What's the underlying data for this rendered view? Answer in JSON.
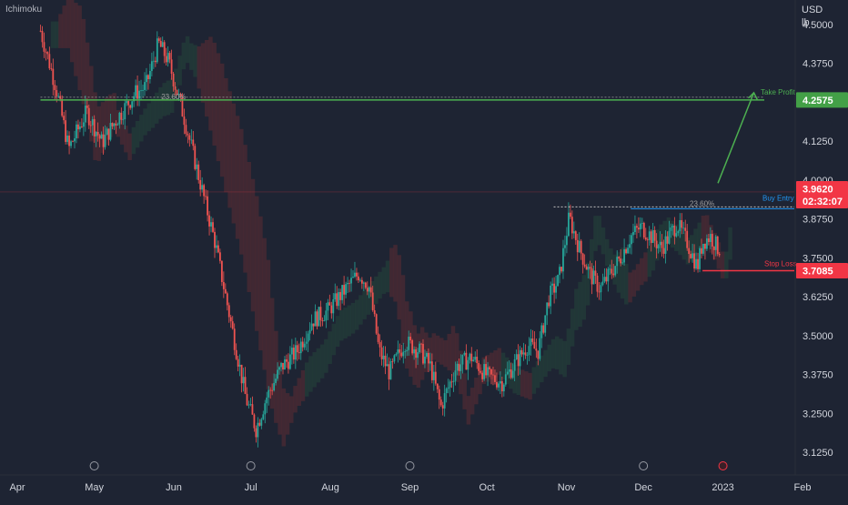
{
  "indicator_name": "Ichimoku",
  "currency": "USD",
  "unit": "lb",
  "chart_data": {
    "type": "candlestick",
    "x_axis": {
      "labels": [
        "Apr",
        "May",
        "Jun",
        "Jul",
        "Aug",
        "Sep",
        "Oct",
        "Nov",
        "Dec",
        "2023",
        "Feb"
      ],
      "day_values": [
        0,
        30,
        61,
        91,
        122,
        153,
        183,
        214,
        244,
        275,
        306
      ]
    },
    "y_axis": {
      "ticks": [
        3.125,
        3.25,
        3.375,
        3.5,
        3.625,
        3.75,
        3.875,
        4.0,
        4.125,
        4.375,
        4.5
      ],
      "tick_labels": [
        "3.1250",
        "3.2500",
        "3.3750",
        "3.5000",
        "3.6250",
        "3.7500",
        "3.8750",
        "4.0000",
        "4.1250",
        "4.3750",
        "4.5000"
      ],
      "range": [
        3.06,
        4.55
      ]
    },
    "price_path": [
      {
        "day": 14,
        "price": 4.48
      },
      {
        "day": 20,
        "price": 4.3
      },
      {
        "day": 25,
        "price": 4.1
      },
      {
        "day": 32,
        "price": 4.22
      },
      {
        "day": 38,
        "price": 4.12
      },
      {
        "day": 44,
        "price": 4.2
      },
      {
        "day": 51,
        "price": 4.28
      },
      {
        "day": 55,
        "price": 4.3
      },
      {
        "day": 60,
        "price": 4.44
      },
      {
        "day": 64,
        "price": 4.38
      },
      {
        "day": 70,
        "price": 4.2
      },
      {
        "day": 76,
        "price": 4.0
      },
      {
        "day": 82,
        "price": 3.8
      },
      {
        "day": 88,
        "price": 3.55
      },
      {
        "day": 94,
        "price": 3.3
      },
      {
        "day": 98,
        "price": 3.2
      },
      {
        "day": 102,
        "price": 3.3
      },
      {
        "day": 108,
        "price": 3.4
      },
      {
        "day": 114,
        "price": 3.45
      },
      {
        "day": 120,
        "price": 3.55
      },
      {
        "day": 126,
        "price": 3.58
      },
      {
        "day": 132,
        "price": 3.64
      },
      {
        "day": 138,
        "price": 3.7
      },
      {
        "day": 142,
        "price": 3.66
      },
      {
        "day": 146,
        "price": 3.45
      },
      {
        "day": 150,
        "price": 3.38
      },
      {
        "day": 156,
        "price": 3.48
      },
      {
        "day": 162,
        "price": 3.45
      },
      {
        "day": 166,
        "price": 3.4
      },
      {
        "day": 170,
        "price": 3.27
      },
      {
        "day": 176,
        "price": 3.4
      },
      {
        "day": 182,
        "price": 3.43
      },
      {
        "day": 188,
        "price": 3.37
      },
      {
        "day": 194,
        "price": 3.35
      },
      {
        "day": 198,
        "price": 3.4
      },
      {
        "day": 204,
        "price": 3.47
      },
      {
        "day": 208,
        "price": 3.45
      },
      {
        "day": 212,
        "price": 3.62
      },
      {
        "day": 216,
        "price": 3.68
      },
      {
        "day": 220,
        "price": 3.88
      },
      {
        "day": 224,
        "price": 3.78
      },
      {
        "day": 228,
        "price": 3.7
      },
      {
        "day": 232,
        "price": 3.65
      },
      {
        "day": 236,
        "price": 3.7
      },
      {
        "day": 240,
        "price": 3.75
      },
      {
        "day": 244,
        "price": 3.82
      },
      {
        "day": 248,
        "price": 3.85
      },
      {
        "day": 252,
        "price": 3.82
      },
      {
        "day": 256,
        "price": 3.78
      },
      {
        "day": 262,
        "price": 3.86
      },
      {
        "day": 266,
        "price": 3.8
      },
      {
        "day": 270,
        "price": 3.72
      },
      {
        "day": 272,
        "price": 3.8
      },
      {
        "day": 275,
        "price": 3.82
      },
      {
        "day": 278,
        "price": 3.78
      }
    ],
    "levels": [
      {
        "name": "Take Profit",
        "price": 4.2575,
        "label": "4.2575",
        "color": "#4caf50"
      },
      {
        "name": "Buy Entry",
        "price": 3.9138,
        "label": "3.9620",
        "countdown": "02:32:07",
        "color": "#2196f3"
      },
      {
        "name": "Stop Loss",
        "price": 3.7085,
        "label": "3.7085",
        "color": "#f23645"
      }
    ],
    "fib_labels": [
      "23.60%",
      "23.60%"
    ],
    "last_price": 3.962,
    "last_price_color": "#f23645"
  }
}
